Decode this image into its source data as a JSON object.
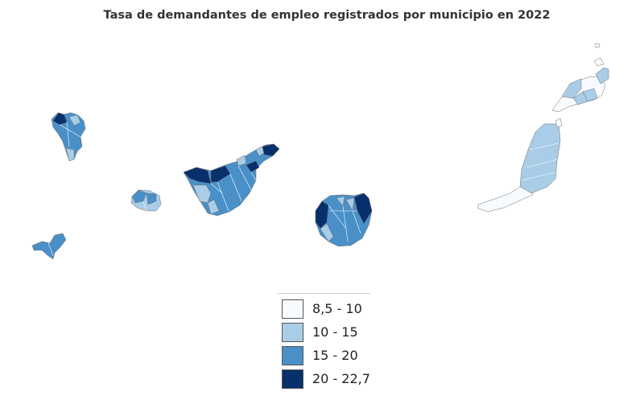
{
  "title": "Tasa de demandantes de empleo registrados por municipio en 2022",
  "colors": {
    "c1": "#f7fbff",
    "c2": "#a9cde6",
    "c3": "#4a90c8",
    "c4": "#08306b"
  },
  "legend": [
    {
      "label": "8,5 - 10",
      "color": "#f7fbff"
    },
    {
      "label": "10 - 15",
      "color": "#a9cde6"
    },
    {
      "label": "15 - 20",
      "color": "#4a90c8"
    },
    {
      "label": "20 - 22,7",
      "color": "#08306b"
    }
  ]
}
